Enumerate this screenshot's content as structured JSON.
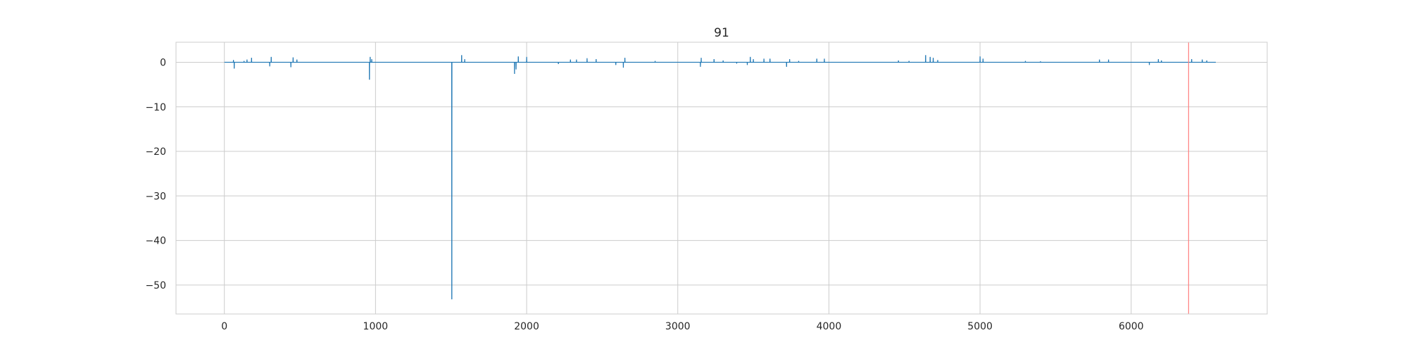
{
  "chart_data": {
    "type": "line",
    "title": "91",
    "xlabel": "",
    "ylabel": "",
    "xlim": [
      -320,
      6900
    ],
    "ylim": [
      -56.5,
      4.5
    ],
    "x_ticks": [
      0,
      1000,
      2000,
      3000,
      4000,
      5000,
      6000
    ],
    "y_ticks": [
      0,
      -10,
      -20,
      -30,
      -40,
      -50
    ],
    "x_tick_labels": [
      "0",
      "1000",
      "2000",
      "3000",
      "4000",
      "5000",
      "6000"
    ],
    "y_tick_labels": [
      "0",
      "−10",
      "−20",
      "−30",
      "−40",
      "−50"
    ],
    "grid": true,
    "series_color": "#1f77b4",
    "marker_color": "#ff7f7f",
    "vertical_marker_x": 6380,
    "series": [
      {
        "x_range": [
          0,
          6560
        ],
        "baseline": 0,
        "spikes": [
          {
            "x": 60,
            "y": 0.5
          },
          {
            "x": 65,
            "y": -1.4
          },
          {
            "x": 130,
            "y": 0.3
          },
          {
            "x": 150,
            "y": 0.6
          },
          {
            "x": 180,
            "y": 1.0
          },
          {
            "x": 300,
            "y": -0.9
          },
          {
            "x": 310,
            "y": 1.2
          },
          {
            "x": 440,
            "y": -1.1
          },
          {
            "x": 455,
            "y": 1.1
          },
          {
            "x": 480,
            "y": 0.6
          },
          {
            "x": 960,
            "y": -3.9
          },
          {
            "x": 965,
            "y": 1.2
          },
          {
            "x": 975,
            "y": 0.7
          },
          {
            "x": 1505,
            "y": -53.2
          },
          {
            "x": 1570,
            "y": 1.6
          },
          {
            "x": 1590,
            "y": 0.7
          },
          {
            "x": 1920,
            "y": -2.6
          },
          {
            "x": 1930,
            "y": -1.6
          },
          {
            "x": 1945,
            "y": 1.3
          },
          {
            "x": 2000,
            "y": 1.2
          },
          {
            "x": 2210,
            "y": -0.4
          },
          {
            "x": 2290,
            "y": 0.6
          },
          {
            "x": 2330,
            "y": 0.6
          },
          {
            "x": 2400,
            "y": 0.9
          },
          {
            "x": 2460,
            "y": 0.7
          },
          {
            "x": 2590,
            "y": -0.6
          },
          {
            "x": 2640,
            "y": -1.2
          },
          {
            "x": 2650,
            "y": 1.0
          },
          {
            "x": 2850,
            "y": 0.3
          },
          {
            "x": 3150,
            "y": -1.0
          },
          {
            "x": 3155,
            "y": 1.0
          },
          {
            "x": 3240,
            "y": 0.7
          },
          {
            "x": 3300,
            "y": 0.4
          },
          {
            "x": 3390,
            "y": -0.3
          },
          {
            "x": 3460,
            "y": -0.6
          },
          {
            "x": 3480,
            "y": 1.2
          },
          {
            "x": 3500,
            "y": 0.7
          },
          {
            "x": 3570,
            "y": 0.8
          },
          {
            "x": 3610,
            "y": 0.8
          },
          {
            "x": 3720,
            "y": -1.0
          },
          {
            "x": 3740,
            "y": 0.7
          },
          {
            "x": 3800,
            "y": 0.3
          },
          {
            "x": 3920,
            "y": 0.8
          },
          {
            "x": 3970,
            "y": 0.8
          },
          {
            "x": 4460,
            "y": 0.4
          },
          {
            "x": 4530,
            "y": 0.3
          },
          {
            "x": 4640,
            "y": 1.6
          },
          {
            "x": 4670,
            "y": 1.2
          },
          {
            "x": 4690,
            "y": 1.0
          },
          {
            "x": 4720,
            "y": 0.5
          },
          {
            "x": 5000,
            "y": 1.3
          },
          {
            "x": 5020,
            "y": 0.8
          },
          {
            "x": 5300,
            "y": 0.3
          },
          {
            "x": 5400,
            "y": 0.2
          },
          {
            "x": 5790,
            "y": 0.6
          },
          {
            "x": 5850,
            "y": 0.6
          },
          {
            "x": 6120,
            "y": -0.6
          },
          {
            "x": 6180,
            "y": 0.7
          },
          {
            "x": 6200,
            "y": 0.4
          },
          {
            "x": 6400,
            "y": 0.7
          },
          {
            "x": 6470,
            "y": 0.6
          },
          {
            "x": 6500,
            "y": 0.4
          }
        ]
      }
    ]
  }
}
